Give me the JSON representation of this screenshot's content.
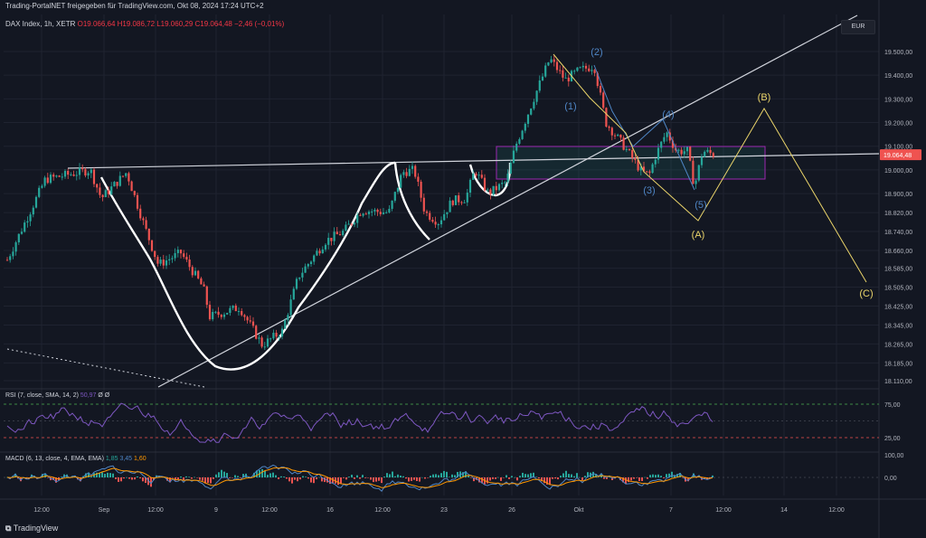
{
  "header": {
    "published": "Trading-PortalNET freigegeben für TradingView.com, Okt 08, 2024 17:24 UTC+2",
    "symbol": "DAX Index, 1h, XETR",
    "ohlc": "O19.066,64  H19.086,72  L19.060,29  C19.064,48  −2,46 (−0,01%)"
  },
  "currency": "EUR",
  "branding": "TradingView",
  "chart_data": {
    "type": "candlestick",
    "price_ticks": [
      "19.500,00",
      "19.400,00",
      "19.300,00",
      "19.200,00",
      "19.100,00",
      "19.000,00",
      "18.900,00",
      "18.820,00",
      "18.740,00",
      "18.660,00",
      "18.585,00",
      "18.505,00",
      "18.425,00",
      "18.345,00",
      "18.265,00",
      "18.185,00",
      "18.110,00"
    ],
    "last_price": "19.064,48",
    "time_ticks": [
      "12:00",
      "Sep",
      "12:00",
      "9",
      "12:00",
      "16",
      "12:00",
      "23",
      "26",
      "Okt",
      "7",
      "12:00",
      "14",
      "12:00"
    ],
    "rsi": {
      "label": "RSI (7, close, SMA, 14, 2)",
      "value": "50,97",
      "extra": "Ø  Ø",
      "ticks": [
        "75,00",
        "25,00"
      ]
    },
    "macd": {
      "label": "MACD (6, 13, close, 4, EMA, EMA)",
      "histogram": "1,85",
      "macd": "3,45",
      "signal": "1,60",
      "ticks": [
        "100,00",
        "0,00"
      ]
    },
    "wave_labels": {
      "impulse": [
        "(1)",
        "(2)",
        "(3)",
        "(4)",
        "(5)"
      ],
      "correction": [
        "(A)",
        "(B)",
        "(C)"
      ]
    },
    "colors": {
      "up": "#26a69a",
      "down": "#ef5350",
      "impulse": "#4f86c6",
      "correction": "#ead46a",
      "last_price_bg": "#ef5350"
    }
  }
}
